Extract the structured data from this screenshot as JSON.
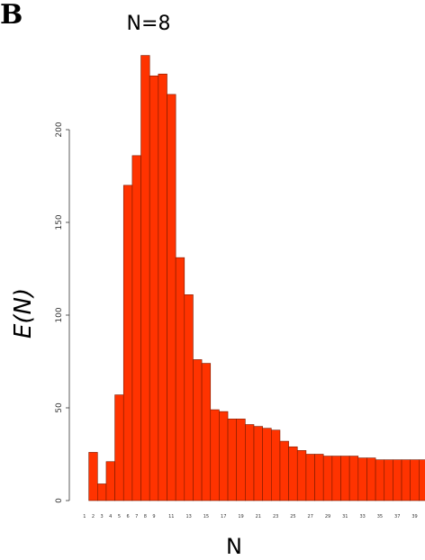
{
  "panel_letter": "B",
  "chart_data": {
    "type": "bar",
    "title": "N=8",
    "xlabel": "N",
    "ylabel": "E(N)",
    "ylim": [
      0,
      250
    ],
    "yticks": [
      0,
      50,
      100,
      150,
      200
    ],
    "categories": [
      "1",
      "2",
      "3",
      "4",
      "5",
      "6",
      "7",
      "8",
      "9",
      "10",
      "11",
      "12",
      "13",
      "14",
      "15",
      "16",
      "17",
      "18",
      "19",
      "20",
      "21",
      "22",
      "23",
      "24",
      "25",
      "26",
      "27",
      "28",
      "29",
      "30",
      "31",
      "32",
      "33",
      "34",
      "35",
      "36",
      "37",
      "38",
      "39",
      "40",
      "41"
    ],
    "xtick_labels": [
      "1",
      "2",
      "3",
      "4",
      "5",
      "6",
      "7",
      "8",
      "9",
      "11",
      "13",
      "15",
      "17",
      "19",
      "21",
      "23",
      "25",
      "27",
      "29",
      "31",
      "33",
      "35",
      "37",
      "39"
    ],
    "values": [
      0,
      26,
      9,
      21,
      57,
      170,
      186,
      240,
      229,
      230,
      219,
      131,
      111,
      76,
      74,
      49,
      48,
      44,
      44,
      41,
      40,
      39,
      38,
      32,
      29,
      27,
      25,
      25,
      24,
      24,
      24,
      24,
      23,
      23,
      22,
      22,
      22,
      22,
      22,
      22,
      22
    ],
    "bar_color": "#ff3300",
    "grid": false,
    "legend": "none"
  }
}
